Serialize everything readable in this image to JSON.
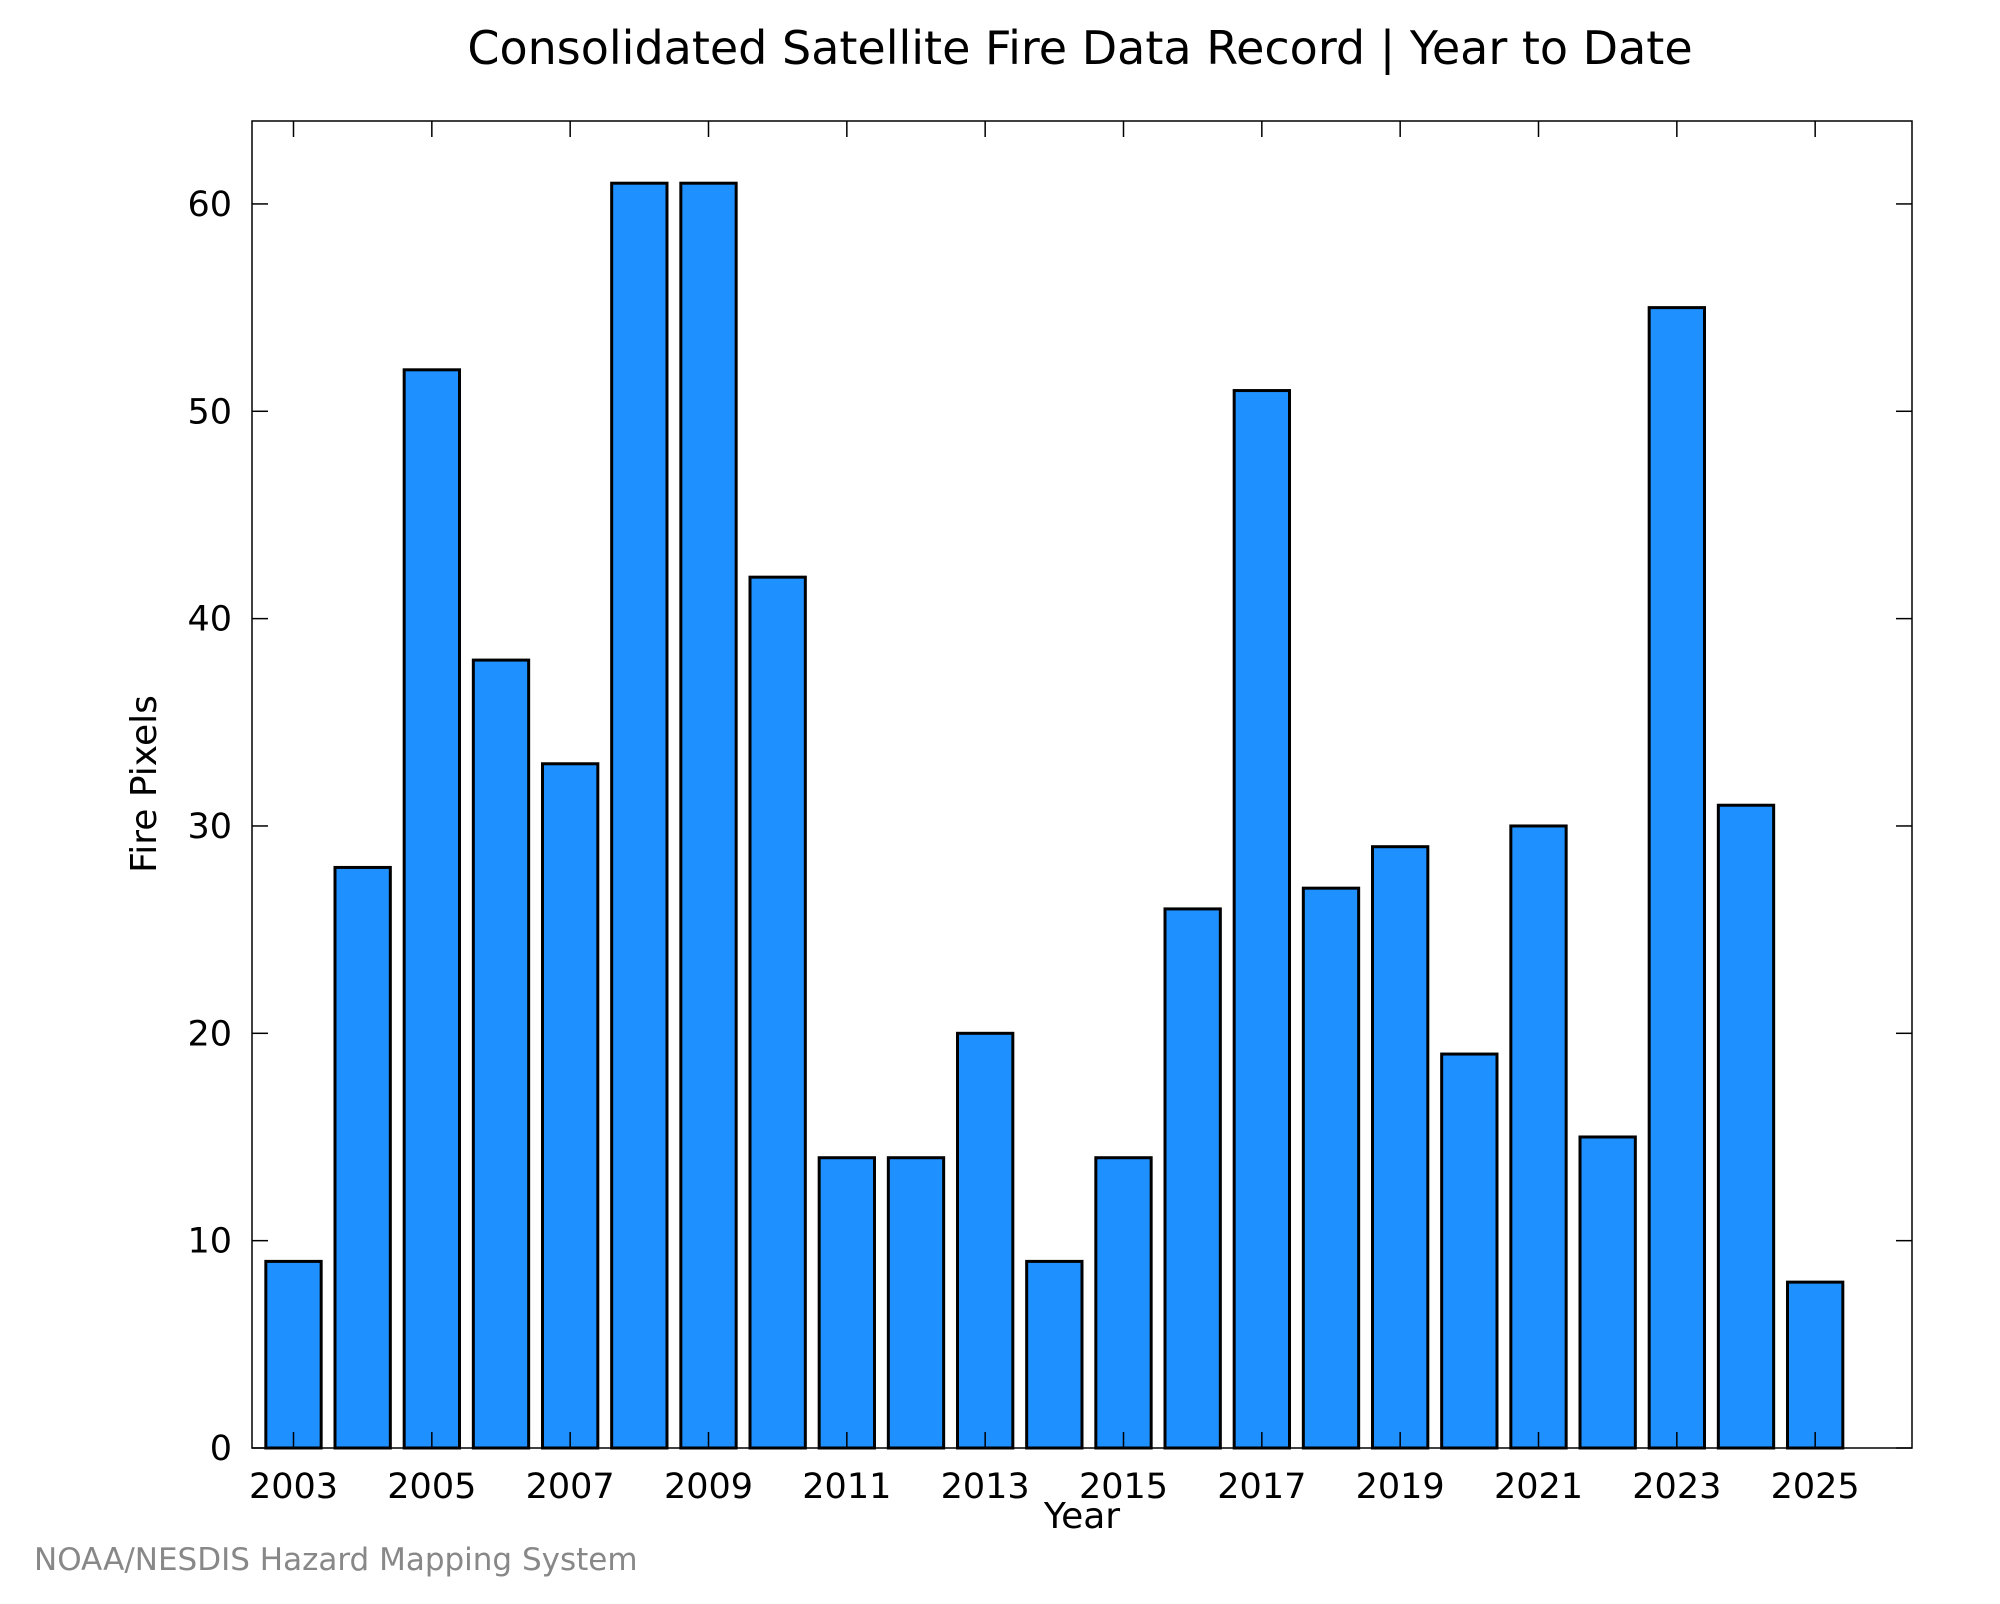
{
  "chart_data": {
    "type": "bar",
    "title": "Consolidated Satellite Fire Data Record | Year to Date",
    "xlabel": "Year",
    "ylabel": "Fire Pixels",
    "categories": [
      "2003",
      "2004",
      "2005",
      "2006",
      "2007",
      "2008",
      "2009",
      "2010",
      "2011",
      "2012",
      "2013",
      "2014",
      "2015",
      "2016",
      "2017",
      "2018",
      "2019",
      "2020",
      "2021",
      "2022",
      "2023",
      "2024",
      "2025"
    ],
    "values": [
      9,
      28,
      52,
      38,
      33,
      61,
      61,
      42,
      14,
      14,
      20,
      9,
      14,
      26,
      51,
      27,
      29,
      19,
      30,
      15,
      55,
      31,
      8
    ],
    "x_tick_labels": [
      "2003",
      "2005",
      "2007",
      "2009",
      "2011",
      "2013",
      "2015",
      "2017",
      "2019",
      "2021",
      "2023",
      "2025"
    ],
    "y_ticks": [
      0,
      10,
      20,
      30,
      40,
      50,
      60
    ],
    "ylim": [
      0,
      64
    ],
    "grid": false,
    "bar_color": "#1e90ff",
    "bar_edge_color": "#000000"
  },
  "footer": {
    "credit": "NOAA/NESDIS Hazard Mapping System"
  }
}
